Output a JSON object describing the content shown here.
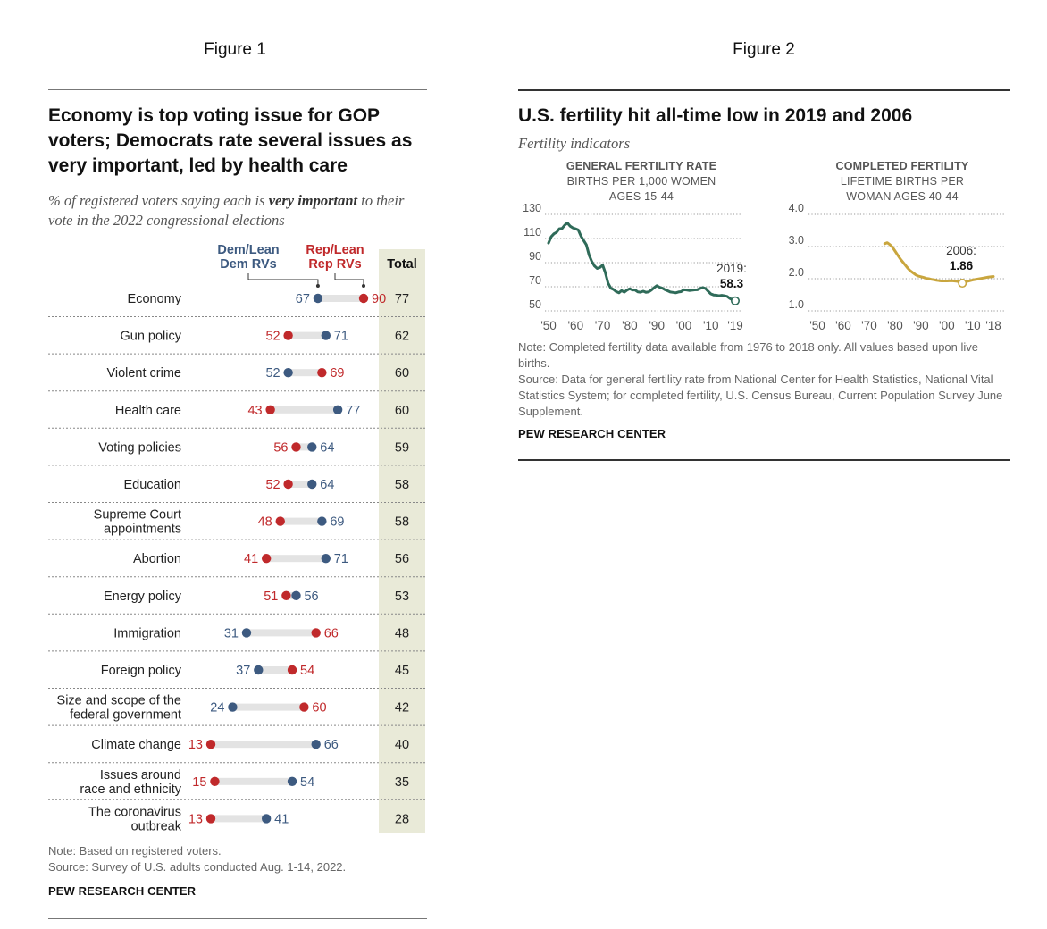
{
  "figures": {
    "figure1_label": "Figure 1",
    "figure2_label": "Figure 2"
  },
  "figure1": {
    "title": "Economy is top voting issue for GOP voters; Democrats rate several issues as very important, led by health care",
    "subtitle_pre": "% of registered voters saying each is ",
    "subtitle_bold": "very important",
    "subtitle_post": " to their vote in the 2022 congressional elections",
    "note": "Note: Based on registered voters.",
    "source": "Source: Survey of U.S. adults conducted Aug. 1-14, 2022.",
    "brand": "PEW RESEARCH CENTER",
    "colors": {
      "dem": "#3d5a80",
      "rep": "#c0292b",
      "bar": "#e3e3e3",
      "total_bg": "#e9ead8"
    }
  },
  "figure2": {
    "title": "U.S. fertility hit all-time low in 2019 and 2006",
    "subtitle": "Fertility indicators",
    "note": "Note: Completed fertility data available from 1976 to 2018 only. All values based upon live births.",
    "source": "Source: Data for general fertility rate from National Center for Health Statistics, National Vital Statistics System; for completed fertility, U.S. Census Bureau, Current Population Survey June Supplement.",
    "brand": "PEW RESEARCH CENTER",
    "colors": {
      "gfr": "#2f6b59",
      "cf": "#c9a63e"
    }
  },
  "chart_data": [
    {
      "type": "dot-range",
      "header_dem": [
        "Dem/Lean",
        "Dem RVs"
      ],
      "header_rep": [
        "Rep/Lean",
        "Rep RVs"
      ],
      "header_total": "Total",
      "xlim": [
        0,
        100
      ],
      "rows": [
        {
          "label": [
            "Economy"
          ],
          "dem": 67,
          "rep": 90,
          "total": 77
        },
        {
          "label": [
            "Gun policy"
          ],
          "dem": 71,
          "rep": 52,
          "total": 62
        },
        {
          "label": [
            "Violent crime"
          ],
          "dem": 52,
          "rep": 69,
          "total": 60
        },
        {
          "label": [
            "Health care"
          ],
          "dem": 77,
          "rep": 43,
          "total": 60
        },
        {
          "label": [
            "Voting policies"
          ],
          "dem": 64,
          "rep": 56,
          "total": 59
        },
        {
          "label": [
            "Education"
          ],
          "dem": 64,
          "rep": 52,
          "total": 58
        },
        {
          "label": [
            "Supreme Court",
            "appointments"
          ],
          "dem": 69,
          "rep": 48,
          "total": 58
        },
        {
          "label": [
            "Abortion"
          ],
          "dem": 71,
          "rep": 41,
          "total": 56
        },
        {
          "label": [
            "Energy policy"
          ],
          "dem": 56,
          "rep": 51,
          "total": 53
        },
        {
          "label": [
            "Immigration"
          ],
          "dem": 31,
          "rep": 66,
          "total": 48
        },
        {
          "label": [
            "Foreign policy"
          ],
          "dem": 37,
          "rep": 54,
          "total": 45
        },
        {
          "label": [
            "Size and scope of the",
            "federal government"
          ],
          "dem": 24,
          "rep": 60,
          "total": 42
        },
        {
          "label": [
            "Climate change"
          ],
          "dem": 66,
          "rep": 13,
          "total": 40
        },
        {
          "label": [
            "Issues around",
            "race and ethnicity"
          ],
          "dem": 54,
          "rep": 15,
          "total": 35
        },
        {
          "label": [
            "The coronavirus",
            "outbreak"
          ],
          "dem": 41,
          "rep": 13,
          "total": 28
        }
      ]
    },
    {
      "type": "line",
      "title_lines": [
        "GENERAL FERTILITY RATE",
        "BIRTHS PER 1,000 WOMEN",
        "AGES 15-44"
      ],
      "ylim": [
        50,
        130
      ],
      "yticks": [
        50,
        70,
        90,
        110,
        130
      ],
      "xlim": [
        1950,
        2019
      ],
      "xticks": [
        1950,
        1960,
        1970,
        1980,
        1990,
        2000,
        2010,
        2019
      ],
      "xtick_labels": [
        "'50",
        "'60",
        "'70",
        "'80",
        "'90",
        "'00",
        "'10",
        "'19"
      ],
      "annotation": {
        "year": 2019,
        "value": 58.3,
        "label": "2019:",
        "value_label": "58.3"
      },
      "grid": "dotted horizontal",
      "series": [
        {
          "values": [
            [
              1950,
              106.2
            ],
            [
              1951,
              111.5
            ],
            [
              1952,
              113.9
            ],
            [
              1953,
              115.2
            ],
            [
              1954,
              118.1
            ],
            [
              1955,
              118.3
            ],
            [
              1956,
              121.2
            ],
            [
              1957,
              122.9
            ],
            [
              1958,
              120.2
            ],
            [
              1959,
              118.8
            ],
            [
              1960,
              118.0
            ],
            [
              1961,
              117.1
            ],
            [
              1962,
              112.0
            ],
            [
              1963,
              108.3
            ],
            [
              1964,
              104.7
            ],
            [
              1965,
              96.3
            ],
            [
              1966,
              90.8
            ],
            [
              1967,
              87.2
            ],
            [
              1968,
              85.2
            ],
            [
              1969,
              86.1
            ],
            [
              1970,
              87.9
            ],
            [
              1971,
              81.6
            ],
            [
              1972,
              73.1
            ],
            [
              1973,
              68.8
            ],
            [
              1974,
              67.8
            ],
            [
              1975,
              66.0
            ],
            [
              1976,
              65.0
            ],
            [
              1977,
              66.8
            ],
            [
              1978,
              65.5
            ],
            [
              1979,
              67.2
            ],
            [
              1980,
              68.4
            ],
            [
              1981,
              67.3
            ],
            [
              1982,
              67.3
            ],
            [
              1983,
              65.7
            ],
            [
              1984,
              65.5
            ],
            [
              1985,
              66.3
            ],
            [
              1986,
              65.4
            ],
            [
              1987,
              65.7
            ],
            [
              1988,
              67.2
            ],
            [
              1989,
              69.2
            ],
            [
              1990,
              70.9
            ],
            [
              1991,
              69.6
            ],
            [
              1992,
              68.9
            ],
            [
              1993,
              67.6
            ],
            [
              1994,
              66.7
            ],
            [
              1995,
              65.6
            ],
            [
              1996,
              65.3
            ],
            [
              1997,
              65.0
            ],
            [
              1998,
              65.6
            ],
            [
              1999,
              65.9
            ],
            [
              2000,
              67.5
            ],
            [
              2001,
              67.3
            ],
            [
              2002,
              66.9
            ],
            [
              2003,
              67.1
            ],
            [
              2004,
              67.4
            ],
            [
              2005,
              67.5
            ],
            [
              2006,
              68.6
            ],
            [
              2007,
              69.3
            ],
            [
              2008,
              68.6
            ],
            [
              2009,
              66.2
            ],
            [
              2010,
              64.1
            ],
            [
              2011,
              63.2
            ],
            [
              2012,
              63.0
            ],
            [
              2013,
              62.5
            ],
            [
              2014,
              62.9
            ],
            [
              2015,
              62.5
            ],
            [
              2016,
              62.0
            ],
            [
              2017,
              60.3
            ],
            [
              2018,
              59.1
            ],
            [
              2019,
              58.3
            ]
          ]
        }
      ]
    },
    {
      "type": "line",
      "title_lines": [
        "COMPLETED FERTILITY",
        "LIFETIME BIRTHS PER",
        "WOMAN AGES 40-44"
      ],
      "ylim": [
        1.0,
        4.0
      ],
      "yticks": [
        1.0,
        2.0,
        3.0,
        4.0
      ],
      "ytick_labels": [
        "1.0",
        "2.0",
        "3.0",
        "4.0"
      ],
      "xlim": [
        1950,
        2018
      ],
      "xticks": [
        1950,
        1960,
        1970,
        1980,
        1990,
        2000,
        2010,
        2018
      ],
      "xtick_labels": [
        "'50",
        "'60",
        "'70",
        "'80",
        "'90",
        "'00",
        "'10",
        "'18"
      ],
      "annotation": {
        "year": 2006,
        "value": 1.86,
        "label": "2006:",
        "value_label": "1.86"
      },
      "grid": "dotted horizontal",
      "series": [
        {
          "values": [
            [
              1976,
              3.09
            ],
            [
              1977,
              3.12
            ],
            [
              1978,
              3.06
            ],
            [
              1979,
              2.98
            ],
            [
              1980,
              2.86
            ],
            [
              1981,
              2.74
            ],
            [
              1982,
              2.62
            ],
            [
              1983,
              2.52
            ],
            [
              1984,
              2.42
            ],
            [
              1985,
              2.32
            ],
            [
              1986,
              2.24
            ],
            [
              1987,
              2.18
            ],
            [
              1988,
              2.12
            ],
            [
              1989,
              2.08
            ],
            [
              1990,
              2.06
            ],
            [
              1991,
              2.04
            ],
            [
              1992,
              2.01
            ],
            [
              1993,
              2.0
            ],
            [
              1994,
              1.98
            ],
            [
              1995,
              1.97
            ],
            [
              1996,
              1.95
            ],
            [
              1997,
              1.94
            ],
            [
              1998,
              1.93
            ],
            [
              2000,
              1.93
            ],
            [
              2002,
              1.94
            ],
            [
              2004,
              1.92
            ],
            [
              2006,
              1.86
            ],
            [
              2008,
              1.92
            ],
            [
              2010,
              1.96
            ],
            [
              2012,
              1.99
            ],
            [
              2014,
              2.02
            ],
            [
              2016,
              2.05
            ],
            [
              2018,
              2.07
            ]
          ]
        }
      ]
    }
  ]
}
